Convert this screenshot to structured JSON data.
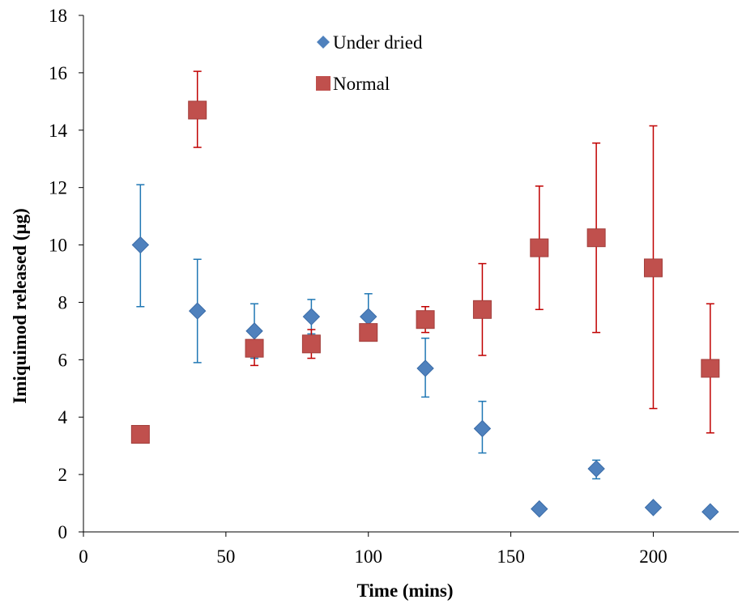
{
  "chart_data": {
    "type": "scatter",
    "title": "",
    "xlabel": "Time (mins)",
    "ylabel": "Imiquimod released (µg)",
    "xlim": [
      0,
      230
    ],
    "ylim": [
      0,
      18
    ],
    "xticks": [
      0,
      50,
      100,
      150,
      200
    ],
    "yticks": [
      0,
      2,
      4,
      6,
      8,
      10,
      12,
      14,
      16,
      18
    ],
    "grid": false,
    "legend_position": "top-center",
    "series": [
      {
        "name": "Under dried",
        "marker": "diamond",
        "color": "#4F81BD",
        "error_color": "#1F77B4",
        "x": [
          20,
          40,
          60,
          80,
          100,
          120,
          140,
          160,
          180,
          200,
          220
        ],
        "y": [
          10.0,
          7.7,
          7.0,
          7.5,
          7.5,
          5.7,
          3.6,
          0.8,
          2.2,
          0.85,
          0.7
        ],
        "error_upper": [
          12.1,
          9.5,
          7.95,
          8.1,
          8.3,
          6.75,
          4.55,
          0.9,
          2.5,
          0.95,
          0.75
        ],
        "error_lower": [
          7.85,
          5.9,
          6.05,
          6.9,
          6.7,
          4.7,
          2.75,
          0.7,
          1.85,
          0.75,
          0.65
        ]
      },
      {
        "name": "Normal",
        "marker": "square",
        "color": "#C0504D",
        "error_color": "#C00000",
        "x": [
          20,
          40,
          60,
          80,
          100,
          120,
          140,
          160,
          180,
          200,
          220
        ],
        "y": [
          3.4,
          14.7,
          6.4,
          6.55,
          6.95,
          7.4,
          7.75,
          9.9,
          10.25,
          9.2,
          5.7
        ],
        "error_upper": [
          3.5,
          16.05,
          6.9,
          7.05,
          7.05,
          7.85,
          9.35,
          12.05,
          13.55,
          14.15,
          7.95
        ],
        "error_lower": [
          3.3,
          13.4,
          5.8,
          6.05,
          6.85,
          6.95,
          6.15,
          7.75,
          6.95,
          4.3,
          3.45
        ]
      }
    ]
  }
}
